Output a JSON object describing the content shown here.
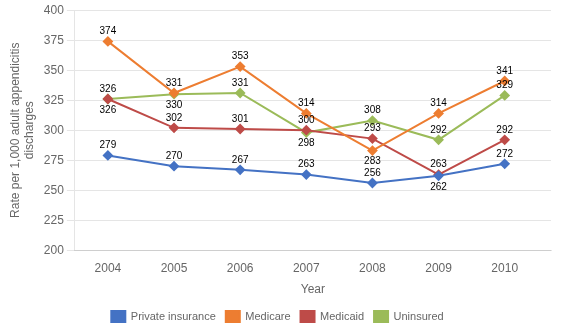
{
  "chart_data": {
    "type": "line",
    "x": [
      2004,
      2005,
      2006,
      2007,
      2008,
      2009,
      2010
    ],
    "series": [
      {
        "name": "Private insurance",
        "color": "#4472C4",
        "marker": "diamond",
        "values": [
          279,
          270,
          267,
          263,
          256,
          262,
          272
        ]
      },
      {
        "name": "Medicare",
        "color": "#ED7D31",
        "marker": "diamond",
        "values": [
          374,
          331,
          353,
          314,
          283,
          314,
          341
        ]
      },
      {
        "name": "Medicaid",
        "color": "#BE4B48",
        "marker": "diamond",
        "values": [
          326,
          302,
          301,
          300,
          293,
          263,
          292
        ]
      },
      {
        "name": "Uninsured",
        "color": "#9BBB59",
        "marker": "diamond",
        "values": [
          326,
          330,
          331,
          298,
          308,
          292,
          329
        ]
      }
    ],
    "x_label": "Year",
    "y_label": "Rate per 1,000 adult appendicitis\ndischarges",
    "xlim": [
      2003.5,
      2010.7
    ],
    "xticks": [
      2004,
      2005,
      2006,
      2007,
      2008,
      2009,
      2010
    ],
    "ylim": [
      200,
      400
    ],
    "yticks": [
      200,
      225,
      250,
      275,
      300,
      325,
      350,
      375,
      400
    ],
    "grid": true,
    "legend": "bottom",
    "data_labels": true
  }
}
